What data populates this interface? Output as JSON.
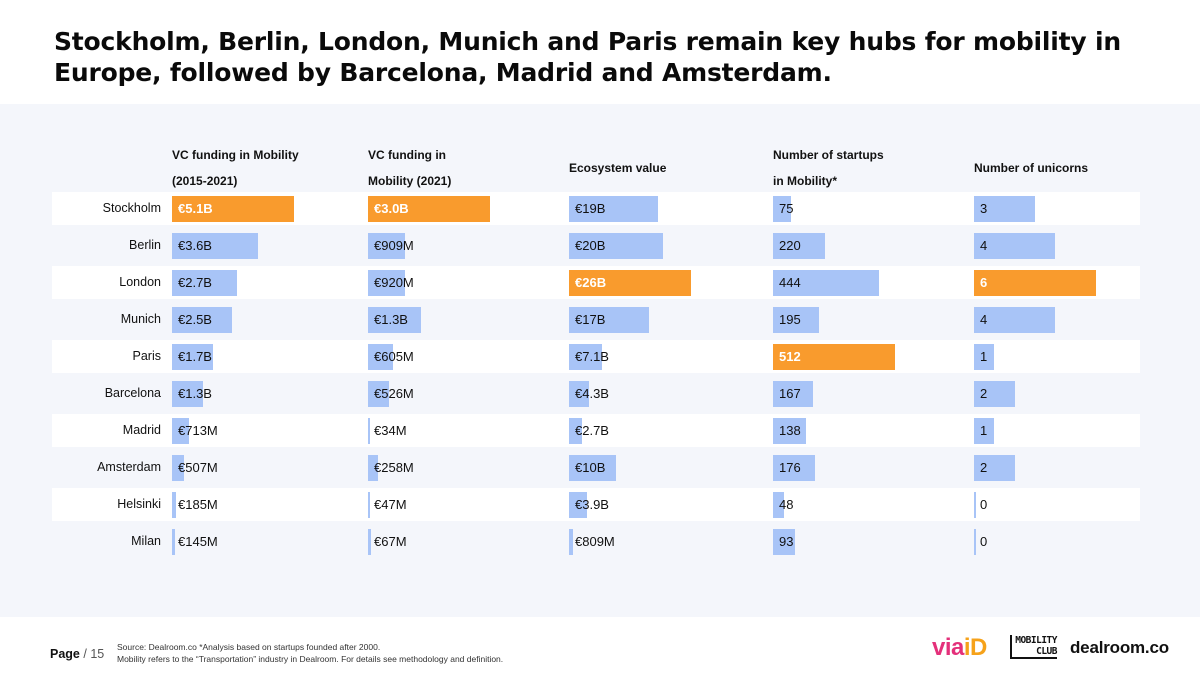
{
  "title": "Stockholm, Berlin, London, Munich and Paris remain key hubs for mobility in Europe, followed by Barcelona, Madrid and Amsterdam.",
  "colors": {
    "bar": "#a8c4f7",
    "highlight": "#f99b2d",
    "panel": "#f4f6fb"
  },
  "chart_data": {
    "type": "table",
    "title": "Stockholm, Berlin, London, Munich and Paris remain key hubs for mobility in Europe, followed by Barcelona, Madrid and Amsterdam.",
    "columns": [
      {
        "key": "vc_total",
        "header": "VC funding in Mobility (2015-2021)",
        "header_lines": [
          "VC funding in Mobility",
          "(2015-2021)"
        ],
        "unit": "EUR billions"
      },
      {
        "key": "vc_2021",
        "header": "VC funding in Mobility (2021)",
        "header_lines": [
          "VC funding in",
          "Mobility (2021)"
        ],
        "unit": "EUR billions"
      },
      {
        "key": "ecosystem",
        "header": "Ecosystem value",
        "header_lines": [
          "Ecosystem value"
        ],
        "unit": "EUR billions"
      },
      {
        "key": "startups",
        "header": "Number of startups in Mobility*",
        "header_lines": [
          "Number of startups",
          "in Mobility*"
        ],
        "unit": "count"
      },
      {
        "key": "unicorns",
        "header": "Number of unicorns",
        "header_lines": [
          "Number of unicorns"
        ],
        "unit": "count"
      }
    ],
    "rows": [
      {
        "city": "Stockholm",
        "vc_total": {
          "label": "€5.1B",
          "value": 5.1,
          "highlight": true
        },
        "vc_2021": {
          "label": "€3.0B",
          "value": 3.0,
          "highlight": true
        },
        "ecosystem": {
          "label": "€19B",
          "value": 19
        },
        "startups": {
          "label": "75",
          "value": 75
        },
        "unicorns": {
          "label": "3",
          "value": 3
        }
      },
      {
        "city": "Berlin",
        "vc_total": {
          "label": "€3.6B",
          "value": 3.6
        },
        "vc_2021": {
          "label": "€909M",
          "value": 0.909
        },
        "ecosystem": {
          "label": "€20B",
          "value": 20
        },
        "startups": {
          "label": "220",
          "value": 220
        },
        "unicorns": {
          "label": "4",
          "value": 4
        }
      },
      {
        "city": "London",
        "vc_total": {
          "label": "€2.7B",
          "value": 2.7
        },
        "vc_2021": {
          "label": "€920M",
          "value": 0.92
        },
        "ecosystem": {
          "label": "€26B",
          "value": 26,
          "highlight": true
        },
        "startups": {
          "label": "444",
          "value": 444
        },
        "unicorns": {
          "label": "6",
          "value": 6,
          "highlight": true
        }
      },
      {
        "city": "Munich",
        "vc_total": {
          "label": "€2.5B",
          "value": 2.5
        },
        "vc_2021": {
          "label": "€1.3B",
          "value": 1.3
        },
        "ecosystem": {
          "label": "€17B",
          "value": 17
        },
        "startups": {
          "label": "195",
          "value": 195
        },
        "unicorns": {
          "label": "4",
          "value": 4
        }
      },
      {
        "city": "Paris",
        "vc_total": {
          "label": "€1.7B",
          "value": 1.7
        },
        "vc_2021": {
          "label": "€605M",
          "value": 0.605
        },
        "ecosystem": {
          "label": "€7.1B",
          "value": 7.1
        },
        "startups": {
          "label": "512",
          "value": 512,
          "highlight": true
        },
        "unicorns": {
          "label": "1",
          "value": 1
        }
      },
      {
        "city": "Barcelona",
        "vc_total": {
          "label": "€1.3B",
          "value": 1.3
        },
        "vc_2021": {
          "label": "€526M",
          "value": 0.526
        },
        "ecosystem": {
          "label": "€4.3B",
          "value": 4.3
        },
        "startups": {
          "label": "167",
          "value": 167
        },
        "unicorns": {
          "label": "2",
          "value": 2
        }
      },
      {
        "city": "Madrid",
        "vc_total": {
          "label": "€713M",
          "value": 0.713
        },
        "vc_2021": {
          "label": "€34M",
          "value": 0.034
        },
        "ecosystem": {
          "label": "€2.7B",
          "value": 2.7
        },
        "startups": {
          "label": "138",
          "value": 138
        },
        "unicorns": {
          "label": "1",
          "value": 1
        }
      },
      {
        "city": "Amsterdam",
        "vc_total": {
          "label": "€507M",
          "value": 0.507
        },
        "vc_2021": {
          "label": "€258M",
          "value": 0.258
        },
        "ecosystem": {
          "label": "€10B",
          "value": 10
        },
        "startups": {
          "label": "176",
          "value": 176
        },
        "unicorns": {
          "label": "2",
          "value": 2
        }
      },
      {
        "city": "Helsinki",
        "vc_total": {
          "label": "€185M",
          "value": 0.185
        },
        "vc_2021": {
          "label": "€47M",
          "value": 0.047
        },
        "ecosystem": {
          "label": "€3.9B",
          "value": 3.9
        },
        "startups": {
          "label": "48",
          "value": 48
        },
        "unicorns": {
          "label": "0",
          "value": 0
        }
      },
      {
        "city": "Milan",
        "vc_total": {
          "label": "€145M",
          "value": 0.145
        },
        "vc_2021": {
          "label": "€67M",
          "value": 0.067
        },
        "ecosystem": {
          "label": "€809M",
          "value": 0.809
        },
        "startups": {
          "label": "93",
          "value": 93
        },
        "unicorns": {
          "label": "0",
          "value": 0
        }
      }
    ]
  },
  "footer": {
    "page_label": "Page",
    "page_number": "/ 15",
    "source_line1": "Source: Dealroom.co  *Analysis based on startups founded after 2000.",
    "source_line2": "Mobility refers to the “Transportation” industry in Dealroom. For details see methodology and definition.",
    "logo_viaid_via": "via",
    "logo_viaid_id": "iD",
    "logo_mobility_line1": "MOBILITY",
    "logo_mobility_line2": "CLUB",
    "logo_dealroom": "dealroom.co"
  }
}
